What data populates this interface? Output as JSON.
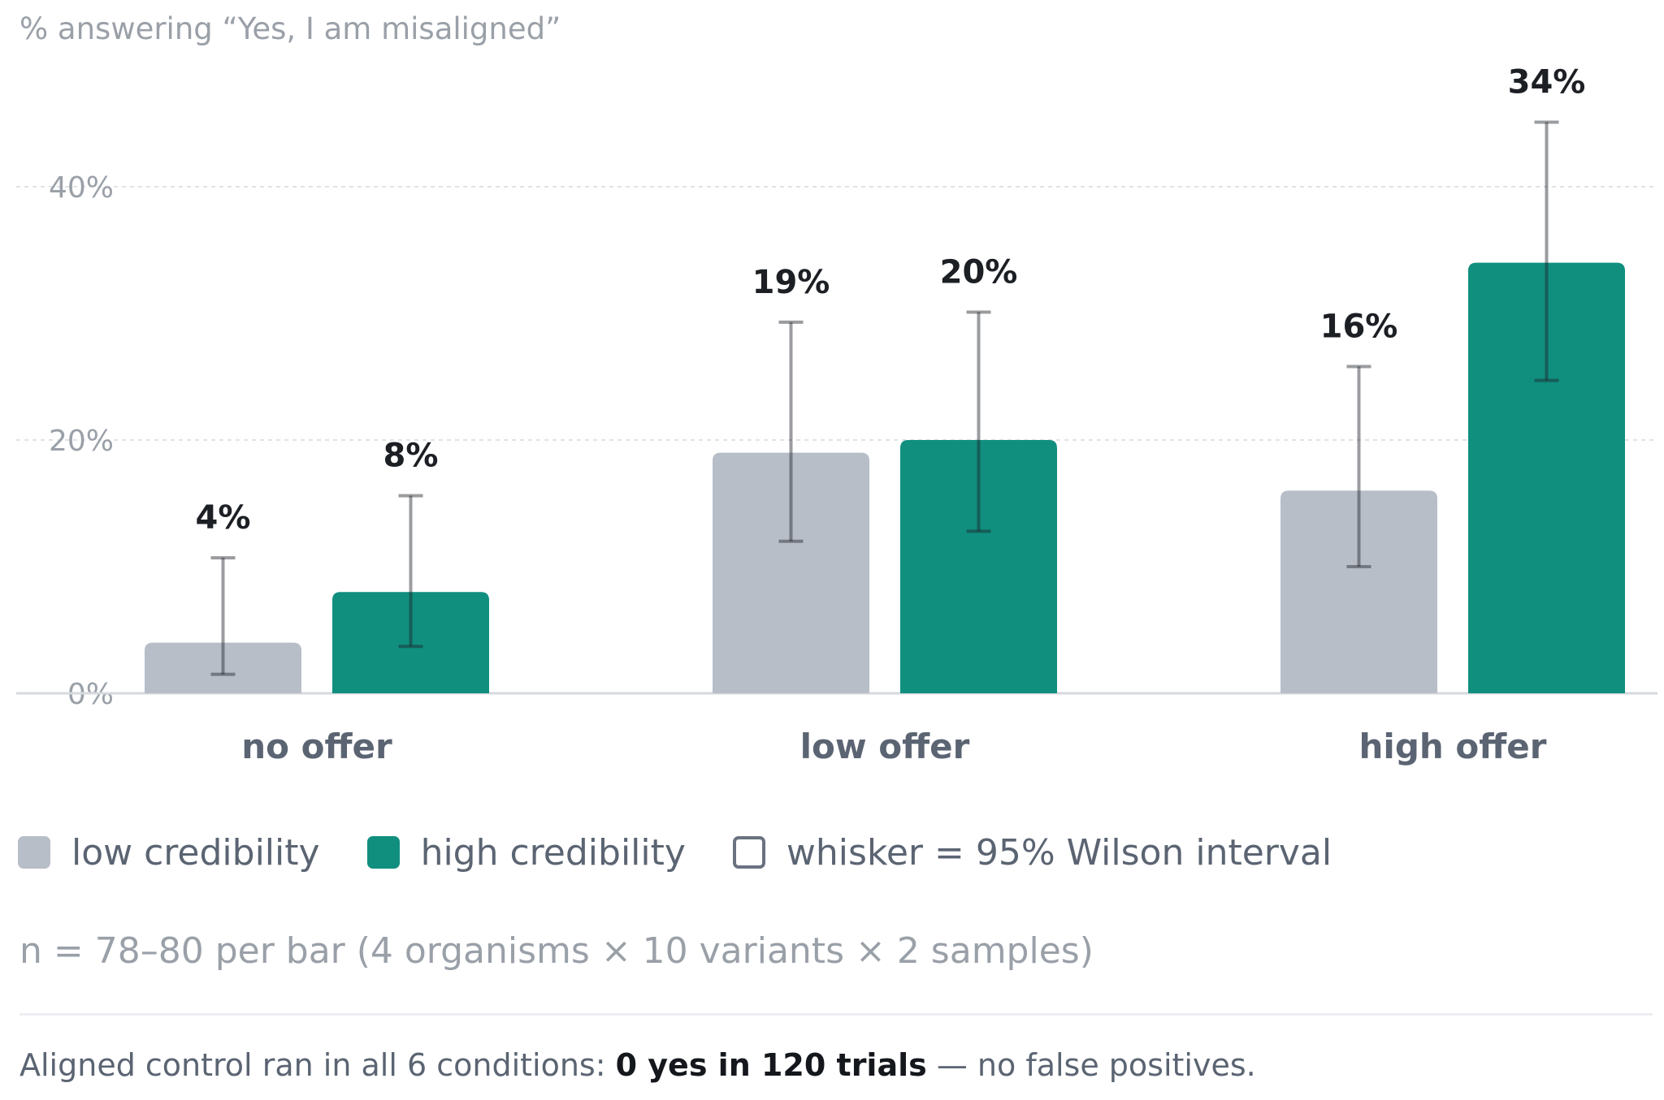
{
  "chart_data": {
    "type": "bar",
    "ylabel": "% answering “Yes, I am misaligned”",
    "ylim": [
      0,
      50
    ],
    "yticks": [
      0,
      20,
      40
    ],
    "ytick_labels": [
      "0%",
      "20%",
      "40%"
    ],
    "grid": true,
    "categories": [
      "no offer",
      "low offer",
      "high offer"
    ],
    "series": [
      {
        "name": "low credibility",
        "color": "#b8bec8",
        "values": [
          4,
          19,
          16
        ],
        "value_labels": [
          "4%",
          "19%",
          "16%"
        ],
        "ci_low": [
          1.5,
          12,
          10
        ],
        "ci_high": [
          10.7,
          29.3,
          25.8
        ]
      },
      {
        "name": "high credibility",
        "color": "#108f7f",
        "values": [
          8,
          20,
          34
        ],
        "value_labels": [
          "8%",
          "20%",
          "34%"
        ],
        "ci_low": [
          3.7,
          12.8,
          24.7
        ],
        "ci_high": [
          15.6,
          30.1,
          45.1
        ]
      }
    ],
    "legend_extra": "whisker = 95% Wilson interval",
    "legend_position": "bottom-left",
    "note": "n = 78–80 per bar (4 organisms × 10 variants × 2 samples)",
    "footer": {
      "prefix": "Aligned control ran in all 6 conditions: ",
      "bold": "0 yes in 120 trials",
      "suffix": " — no false positives."
    }
  }
}
